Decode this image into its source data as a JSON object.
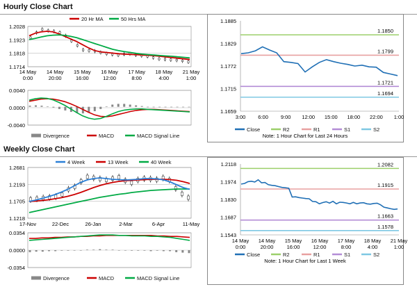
{
  "sections": {
    "hourly_title": "Hourly Close Chart",
    "weekly_title": "Weekly Close Chart"
  },
  "colors": {
    "ma20_hourly": "#cc0000",
    "ma50_hourly": "#00aa44",
    "wk4": "#2b7fd6",
    "wk13": "#cc0000",
    "wk40": "#00aa44",
    "macd": "#00aa44",
    "macd_signal": "#cc0000",
    "divergence": "#888888",
    "close_line": "#1f6fb5",
    "r2": "#9ccf6a",
    "r1": "#e8a0a0",
    "s1": "#b38cd6",
    "s2": "#7ec8e3"
  },
  "chart_data": [
    {
      "id": "hourly_price",
      "type": "line",
      "legend": [
        "20 Hr MA",
        "50 Hrs MA"
      ],
      "y_ticks": [
        "1.2028",
        "1.1923",
        "1.1818",
        "1.1714"
      ],
      "ylim": [
        1.1714,
        1.2028
      ],
      "x_ticks": [
        "14 May\n0:00",
        "14 May\n20:00",
        "15 May\n16:00",
        "16 May\n12:00",
        "17 May\n8:00",
        "18 May\n4:00",
        "21 May\n1:00"
      ],
      "series": [
        {
          "name": "20 Hr MA",
          "values": [
            1.1955,
            1.1975,
            1.1985,
            1.199,
            1.1985,
            1.197,
            1.195,
            1.193,
            1.191,
            1.1885,
            1.186,
            1.184,
            1.183,
            1.1825,
            1.182,
            1.1815,
            1.1812,
            1.181,
            1.1808,
            1.1805,
            1.1803,
            1.18,
            1.1795,
            1.179,
            1.1785,
            1.178,
            1.1775,
            1.177
          ]
        },
        {
          "name": "50 Hrs MA",
          "values": [
            1.1925,
            1.1935,
            1.1945,
            1.1955,
            1.196,
            1.1962,
            1.1958,
            1.195,
            1.194,
            1.1925,
            1.191,
            1.1895,
            1.188,
            1.1865,
            1.185,
            1.184,
            1.1832,
            1.1825,
            1.1818,
            1.1812,
            1.1808,
            1.1805,
            1.1801,
            1.1798,
            1.1795,
            1.1791,
            1.1787,
            1.1783
          ]
        }
      ],
      "candles": [
        1.194,
        1.198,
        1.2005,
        1.1995,
        1.199,
        1.198,
        1.1955,
        1.1915,
        1.188,
        1.1845,
        1.184,
        1.1835,
        1.1825,
        1.1815,
        1.181,
        1.1805,
        1.1812,
        1.1815,
        1.1806,
        1.18,
        1.1795,
        1.1785,
        1.1775,
        1.1772,
        1.1768,
        1.1765,
        1.176,
        1.1752
      ]
    },
    {
      "id": "hourly_macd",
      "type": "line",
      "legend": [
        "Divergence",
        "MACD",
        "MACD Signal Line"
      ],
      "y_ticks": [
        "0.0040",
        "0.0000",
        "-0.0040"
      ],
      "ylim": [
        -0.005,
        0.0045
      ],
      "macd": [
        0.0018,
        0.0022,
        0.0024,
        0.0023,
        0.0019,
        0.0012,
        0.0004,
        -0.0006,
        -0.0016,
        -0.0025,
        -0.0031,
        -0.0034,
        -0.0032,
        -0.0026,
        -0.0019,
        -0.0013,
        -0.0009,
        -0.0007,
        -0.0006,
        -0.0006,
        -0.0007,
        -0.0008,
        -0.0009,
        -0.001,
        -0.0011,
        -0.0012,
        -0.0013,
        -0.0014
      ],
      "signal": [
        0.0015,
        0.0018,
        0.0021,
        0.0022,
        0.0021,
        0.0018,
        0.0014,
        0.0008,
        0.0001,
        -0.0007,
        -0.0015,
        -0.0022,
        -0.0026,
        -0.0027,
        -0.0025,
        -0.0021,
        -0.0017,
        -0.0013,
        -0.001,
        -0.0008,
        -0.0007,
        -0.0007,
        -0.0008,
        -0.0009,
        -0.001,
        -0.0011,
        -0.0012,
        -0.0013
      ]
    },
    {
      "id": "hourly_pivot",
      "type": "line",
      "y_ticks": [
        "1.1885",
        "1.1829",
        "1.1772",
        "1.1715",
        "1.1659"
      ],
      "ylim": [
        1.1659,
        1.1885
      ],
      "x_ticks": [
        "3:00",
        "6:00",
        "9:00",
        "12:00",
        "15:00",
        "18:00",
        "22:00",
        "1:00"
      ],
      "close": [
        1.1803,
        1.1805,
        1.181,
        1.182,
        1.1812,
        1.1805,
        1.1783,
        1.1781,
        1.1778,
        1.1757,
        1.177,
        1.1781,
        1.1788,
        1.1783,
        1.1779,
        1.1776,
        1.1772,
        1.1774,
        1.177,
        1.1769,
        1.1756,
        1.1752,
        1.1748
      ],
      "levels": [
        {
          "name": "R2",
          "value": 1.185,
          "label": "1.1850"
        },
        {
          "name": "R1",
          "value": 1.1799,
          "label": "1.1799"
        },
        {
          "name": "S1",
          "value": 1.1721,
          "label": "1.1721"
        },
        {
          "name": "S2",
          "value": 1.1694,
          "label": "1.1694"
        }
      ],
      "legend": [
        "Close",
        "R2",
        "R1",
        "S1",
        "S2"
      ],
      "note": "Note: 1 Hour Chart for Last 24 Hours"
    },
    {
      "id": "weekly_price",
      "type": "line",
      "legend": [
        "4 Week",
        "13 Week",
        "40 Week"
      ],
      "y_ticks": [
        "1.2681",
        "1.2193",
        "1.1705",
        "1.1218"
      ],
      "ylim": [
        1.1218,
        1.2681
      ],
      "x_ticks": [
        "17-Nov",
        "22-Dec",
        "26-Jan",
        "2-Mar",
        "6-Apr",
        "11-May"
      ],
      "series": [
        {
          "name": "4 Week",
          "values": [
            1.17,
            1.174,
            1.179,
            1.184,
            1.19,
            1.197,
            1.205,
            1.215,
            1.225,
            1.232,
            1.236,
            1.238,
            1.236,
            1.234,
            1.233,
            1.232,
            1.233,
            1.234,
            1.236,
            1.236,
            1.235,
            1.232,
            1.226,
            1.218,
            1.21,
            1.205
          ]
        },
        {
          "name": "13 Week",
          "values": [
            1.17,
            1.171,
            1.173,
            1.175,
            1.178,
            1.181,
            1.185,
            1.19,
            1.196,
            1.203,
            1.21,
            1.216,
            1.221,
            1.225,
            1.228,
            1.23,
            1.231,
            1.232,
            1.233,
            1.234,
            1.234,
            1.234,
            1.233,
            1.231,
            1.227,
            1.222
          ]
        },
        {
          "name": "40 Week",
          "values": [
            1.138,
            1.142,
            1.146,
            1.15,
            1.154,
            1.158,
            1.162,
            1.166,
            1.17,
            1.174,
            1.178,
            1.182,
            1.185,
            1.188,
            1.191,
            1.193,
            1.196,
            1.198,
            1.2,
            1.202,
            1.203,
            1.204,
            1.205,
            1.206,
            1.206,
            1.206
          ]
        }
      ],
      "candles": [
        1.176,
        1.178,
        1.18,
        1.182,
        1.184,
        1.19,
        1.205,
        1.212,
        1.228,
        1.241,
        1.238,
        1.235,
        1.232,
        1.236,
        1.24,
        1.23,
        1.224,
        1.232,
        1.236,
        1.235,
        1.233,
        1.238,
        1.232,
        1.208,
        1.192,
        1.181
      ]
    },
    {
      "id": "weekly_macd",
      "type": "line",
      "legend": [
        "Divergence",
        "MACD",
        "MACD Signal Line"
      ],
      "y_ticks": [
        "0.0354",
        "0.0000",
        "-0.0354"
      ],
      "ylim": [
        -0.0354,
        0.0354
      ],
      "macd": [
        0.02,
        0.021,
        0.022,
        0.023,
        0.024,
        0.025,
        0.026,
        0.027,
        0.028,
        0.029,
        0.03,
        0.031,
        0.031,
        0.031,
        0.03,
        0.03,
        0.029,
        0.029,
        0.029,
        0.028,
        0.028,
        0.027,
        0.026,
        0.024,
        0.022,
        0.02
      ],
      "signal": [
        0.024,
        0.024,
        0.025,
        0.025,
        0.026,
        0.026,
        0.027,
        0.027,
        0.028,
        0.028,
        0.029,
        0.029,
        0.03,
        0.03,
        0.03,
        0.03,
        0.03,
        0.03,
        0.03,
        0.03,
        0.029,
        0.029,
        0.028,
        0.028,
        0.027,
        0.026
      ]
    },
    {
      "id": "weekly_pivot",
      "type": "line",
      "y_ticks": [
        "1.2118",
        "1.1974",
        "1.1830",
        "1.1687",
        "1.1543"
      ],
      "ylim": [
        1.1543,
        1.2118
      ],
      "x_ticks": [
        "14 May\n0:00",
        "14 May\n20:00",
        "15 May\n16:00",
        "16 May\n12:00",
        "17 May\n8:00",
        "18 May\n4:00",
        "21 May\n1:00"
      ],
      "close": [
        1.1955,
        1.196,
        1.1975,
        1.1978,
        1.1972,
        1.199,
        1.1965,
        1.1968,
        1.195,
        1.1945,
        1.1942,
        1.1935,
        1.1928,
        1.1925,
        1.1922,
        1.185,
        1.1852,
        1.1846,
        1.1842,
        1.1838,
        1.1836,
        1.1814,
        1.1812,
        1.1795,
        1.1805,
        1.1812,
        1.1801,
        1.1815,
        1.1795,
        1.1808,
        1.1806,
        1.1802,
        1.1795,
        1.1806,
        1.1795,
        1.1802,
        1.1804,
        1.1795,
        1.1792,
        1.1798,
        1.18,
        1.1787,
        1.1768,
        1.1762,
        1.1755,
        1.175,
        1.1753
      ],
      "levels": [
        {
          "name": "R2",
          "value": 1.2082,
          "label": "1.2082"
        },
        {
          "name": "R1",
          "value": 1.1915,
          "label": "1.1915"
        },
        {
          "name": "S1",
          "value": 1.1663,
          "label": "1.1663"
        },
        {
          "name": "S2",
          "value": 1.1578,
          "label": "1.1578"
        }
      ],
      "x_ticks_sub": [],
      "legend": [
        "Close",
        "R2",
        "R1",
        "S1",
        "S2"
      ],
      "note": "Note: 1 Hour Chart for Last 1 Week"
    }
  ]
}
